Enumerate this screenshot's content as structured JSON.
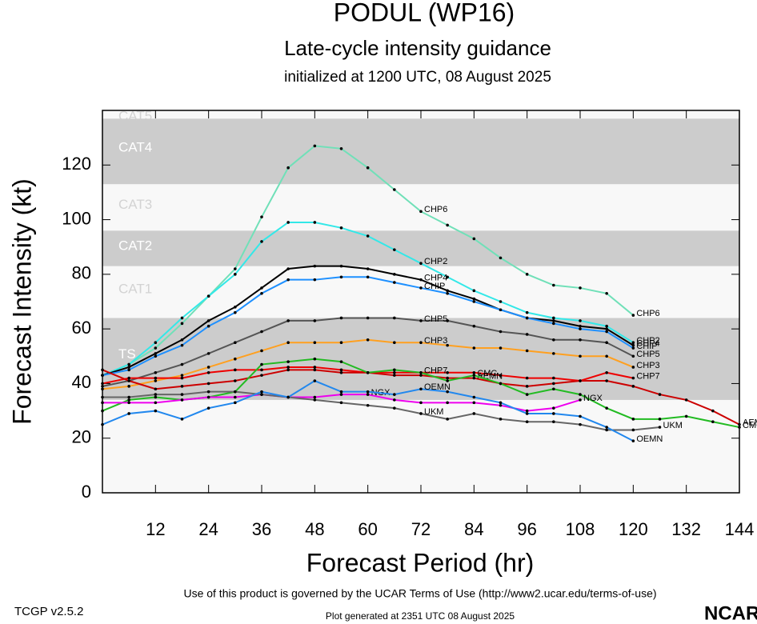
{
  "chart_data": {
    "type": "line",
    "title": "PODUL (WP16)",
    "subtitle": "Late-cycle intensity guidance",
    "initialized": "initialized at 1200 UTC, 08 August 2025",
    "y_label": "Forecast Intensity (kt)",
    "x_label": "Forecast Period (hr)",
    "terms": "Use of this product is governed by the UCAR Terms of Use (http://www2.ucar.edu/terms-of-use)",
    "version": "TCGP v2.5.2",
    "generated": "Plot generated at 2351 UTC   08 August 2025",
    "logo": "NCAR",
    "xlim": [
      0,
      144
    ],
    "xticks": [
      12,
      24,
      36,
      48,
      60,
      72,
      84,
      96,
      108,
      120,
      132,
      144
    ],
    "ylim": [
      0,
      140
    ],
    "yticks": [
      0,
      20,
      40,
      60,
      80,
      100,
      120
    ],
    "bands": [
      {
        "name": "TS",
        "range": [
          34,
          64
        ],
        "color": "#cccccc"
      },
      {
        "name": "CAT1",
        "range": [
          64,
          83
        ],
        "color": "#f8f8f8"
      },
      {
        "name": "CAT2",
        "range": [
          83,
          96
        ],
        "color": "#cccccc"
      },
      {
        "name": "CAT3",
        "range": [
          96,
          113
        ],
        "color": "#f8f8f8"
      },
      {
        "name": "CAT4",
        "range": [
          113,
          137
        ],
        "color": "#cccccc"
      },
      {
        "name": "CAT5",
        "range": [
          137,
          140
        ],
        "color": "#f8f8f8"
      }
    ],
    "x": [
      0,
      6,
      12,
      18,
      24,
      30,
      36,
      42,
      48,
      54,
      60,
      66,
      72,
      78,
      84,
      90,
      96,
      102,
      108,
      114,
      120,
      126,
      132,
      138,
      144
    ],
    "series": [
      {
        "name": "CHP6",
        "color": "#70e0b8",
        "values": [
          43,
          47,
          53,
          62,
          72,
          82,
          101,
          119,
          127,
          126,
          119,
          111,
          103,
          98,
          93,
          86,
          80,
          76,
          75,
          73,
          65,
          null,
          null,
          null,
          null
        ]
      },
      {
        "name": "CHP2",
        "color": "#33e8e8",
        "values": [
          43,
          47,
          55,
          64,
          72,
          80,
          92,
          99,
          99,
          97,
          94,
          89,
          84,
          79,
          74,
          70,
          66,
          64,
          63,
          61,
          55,
          null,
          null,
          null,
          null
        ]
      },
      {
        "name": "CHP4",
        "color": "#000000",
        "values": [
          43,
          46,
          51,
          56,
          63,
          68,
          75,
          82,
          83,
          83,
          82,
          80,
          78,
          74,
          71,
          67,
          64,
          63,
          61,
          60,
          54,
          null,
          null,
          null,
          null
        ]
      },
      {
        "name": "CHIP",
        "color": "#1e90ff",
        "values": [
          43,
          45,
          50,
          54,
          61,
          66,
          73,
          78,
          78,
          79,
          79,
          77,
          75,
          73,
          70,
          67,
          64,
          62,
          60,
          59,
          53,
          null,
          null,
          null,
          null
        ]
      },
      {
        "name": "CHP5",
        "color": "#555555",
        "values": [
          39,
          41,
          44,
          47,
          51,
          55,
          59,
          63,
          63,
          64,
          64,
          64,
          63,
          63,
          61,
          59,
          58,
          56,
          56,
          55,
          50,
          null,
          null,
          null,
          null
        ]
      },
      {
        "name": "CHP3",
        "color": "#ffa020",
        "values": [
          38,
          39,
          41,
          43,
          46,
          49,
          52,
          55,
          55,
          55,
          56,
          55,
          55,
          54,
          53,
          53,
          52,
          51,
          50,
          50,
          46,
          null,
          null,
          null,
          null
        ]
      },
      {
        "name": "CHP7",
        "color": "#ee0000",
        "values": [
          40,
          42,
          42,
          42,
          44,
          45,
          45,
          46,
          46,
          45,
          44,
          44,
          44,
          44,
          44,
          43,
          42,
          42,
          41,
          44,
          42,
          null,
          null,
          null,
          null
        ]
      },
      {
        "name": "AEMN",
        "color": "#cc0000",
        "values": [
          45,
          41,
          38,
          39,
          40,
          41,
          43,
          45,
          45,
          44,
          44,
          43,
          43,
          42,
          42,
          40,
          39,
          40,
          41,
          41,
          39,
          36,
          34,
          30,
          25
        ]
      },
      {
        "name": "CMC",
        "color": "#22bb22",
        "values": [
          30,
          34,
          35,
          34,
          35,
          37,
          47,
          48,
          49,
          48,
          44,
          45,
          44,
          41,
          43,
          40,
          36,
          38,
          36,
          31,
          27,
          27,
          28,
          26,
          24
        ]
      },
      {
        "name": "NGX",
        "color": "#ee00ee",
        "values": [
          33,
          33,
          33,
          34,
          35,
          35,
          36,
          35,
          35,
          36,
          36,
          34,
          33,
          33,
          33,
          32,
          30,
          31,
          34,
          null,
          null,
          null,
          null,
          null,
          null
        ]
      },
      {
        "name": "UKM",
        "color": "#666666",
        "values": [
          35,
          35,
          36,
          36,
          37,
          37,
          36,
          35,
          34,
          33,
          32,
          31,
          29,
          27,
          29,
          27,
          26,
          26,
          25,
          23,
          23,
          24,
          null,
          null,
          null
        ]
      },
      {
        "name": "OEMN",
        "color": "#2288ee",
        "values": [
          25,
          29,
          30,
          27,
          31,
          33,
          37,
          35,
          41,
          37,
          37,
          36,
          38,
          37,
          35,
          33,
          29,
          29,
          28,
          24,
          19,
          null,
          null,
          null,
          null
        ]
      }
    ]
  }
}
